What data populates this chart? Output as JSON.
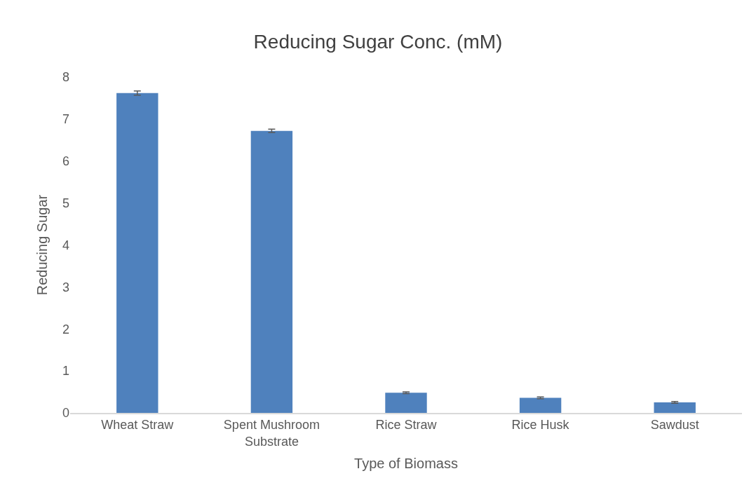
{
  "chart_data": {
    "type": "bar",
    "title": "Reducing Sugar Conc. (mM)",
    "xlabel": "Type of Biomass",
    "ylabel": "Reducing Sugar",
    "categories": [
      "Wheat Straw",
      "Spent Mushroom Substrate",
      "Rice Straw",
      "Rice Husk",
      "Sawdust"
    ],
    "values": [
      7.62,
      6.72,
      0.48,
      0.36,
      0.25
    ],
    "errors": [
      0.05,
      0.04,
      0.02,
      0.02,
      0.02
    ],
    "color": "#4f81bd",
    "ylim": [
      0,
      8
    ],
    "yticks": [
      0,
      1,
      2,
      3,
      4,
      5,
      6,
      7,
      8
    ],
    "grid": false
  }
}
